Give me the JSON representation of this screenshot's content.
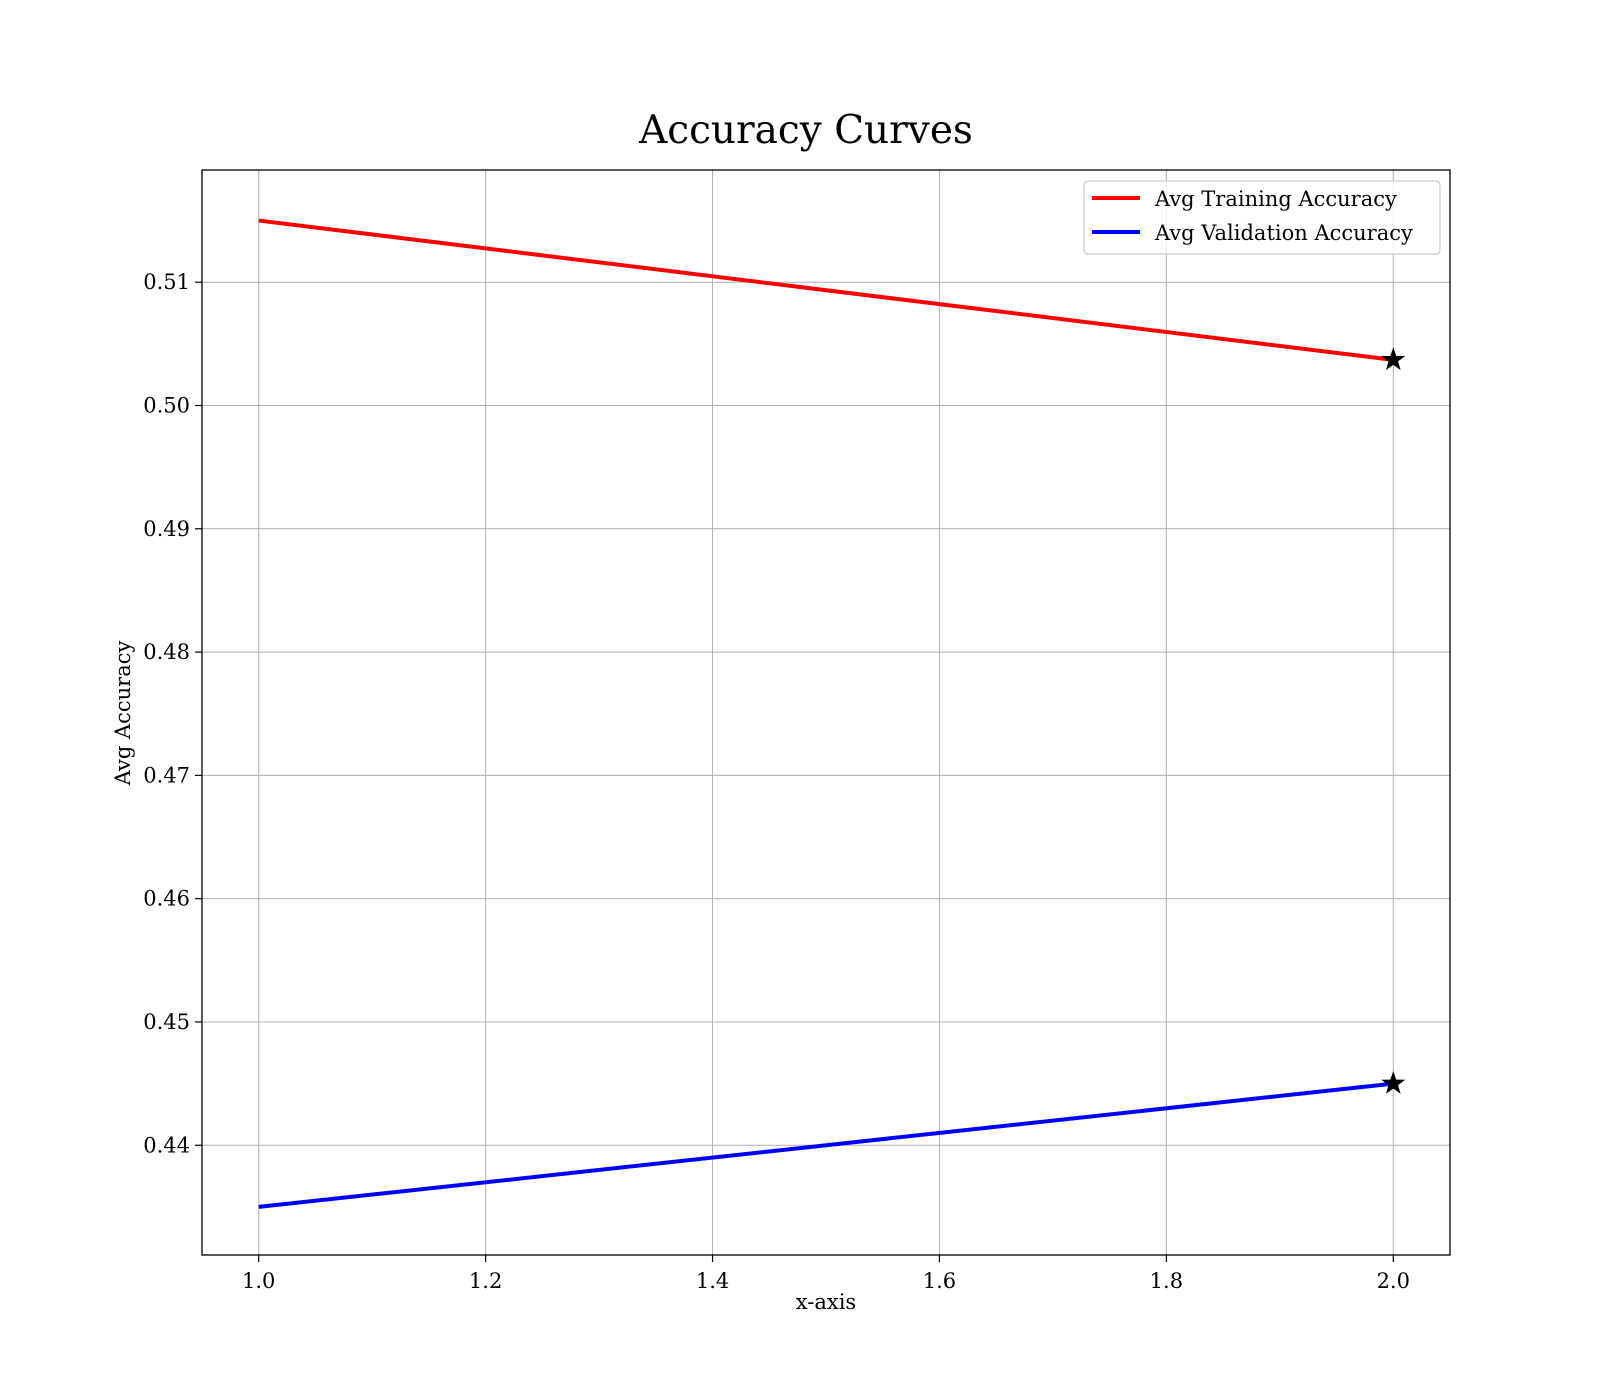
{
  "chart_data": {
    "type": "line",
    "title": "Accuracy Curves",
    "xlabel": "x-axis",
    "ylabel": "Avg Accuracy",
    "x": [
      1.0,
      2.0
    ],
    "xlim": [
      0.95,
      2.05
    ],
    "ylim": [
      0.4311,
      0.5191
    ],
    "xticks": [
      1.0,
      1.2,
      1.4,
      1.6,
      1.8,
      2.0
    ],
    "xtick_labels": [
      "1.0",
      "1.2",
      "1.4",
      "1.6",
      "1.8",
      "2.0"
    ],
    "yticks": [
      0.44,
      0.45,
      0.46,
      0.47,
      0.48,
      0.49,
      0.5,
      0.51
    ],
    "ytick_labels": [
      "0.44",
      "0.45",
      "0.46",
      "0.47",
      "0.48",
      "0.49",
      "0.50",
      "0.51"
    ],
    "grid": true,
    "legend_position": "top-right",
    "series": [
      {
        "name": "Avg Training Accuracy",
        "color": "#ff0000",
        "values": [
          0.515,
          0.5037
        ]
      },
      {
        "name": "Avg Validation Accuracy",
        "color": "#0000ff",
        "values": [
          0.435,
          0.445
        ]
      }
    ],
    "markers": [
      {
        "series": 0,
        "x": 2.0,
        "y": 0.5037,
        "symbol": "star",
        "color": "#000000"
      },
      {
        "series": 1,
        "x": 2.0,
        "y": 0.445,
        "symbol": "star",
        "color": "#000000"
      }
    ]
  }
}
